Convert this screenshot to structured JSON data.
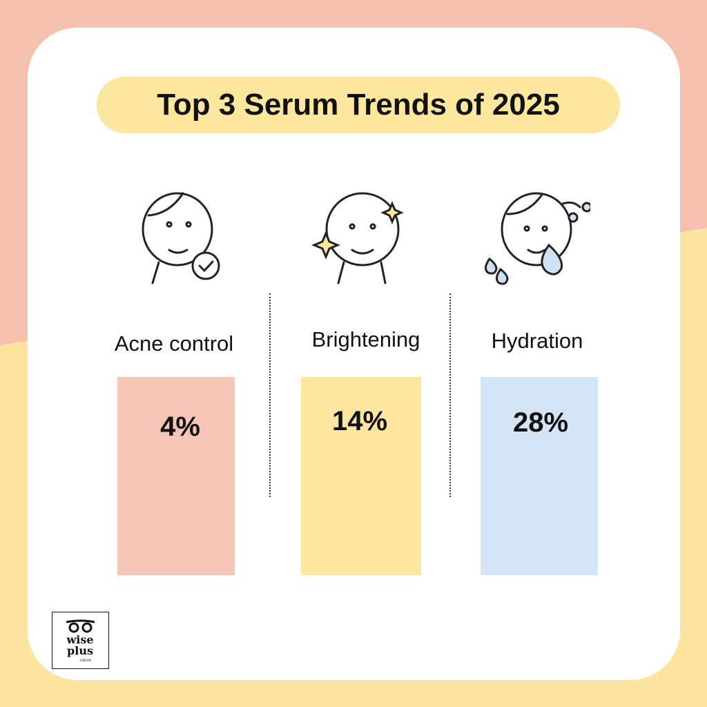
{
  "title": "Top 3 Serum Trends of 2025",
  "colors": {
    "background_top": "#f5c0b0",
    "background_bottom": "#fde4a0",
    "title_pill": "#fde79f"
  },
  "chart_data": {
    "type": "bar",
    "title": "Top 3 Serum Trends of 2025",
    "categories": [
      "Acne control",
      "Brightening",
      "Hydration"
    ],
    "values": [
      4,
      14,
      28
    ],
    "value_labels": [
      "4%",
      "14%",
      "28%"
    ],
    "colors": [
      "#f5c6b8",
      "#fde6a0",
      "#d4e4f4"
    ],
    "icons": [
      "face-checkmark-icon",
      "face-sparkle-icon",
      "face-water-drops-icon"
    ],
    "xlabel": "",
    "ylabel": ""
  },
  "logo": {
    "text": "wise plus GROW"
  }
}
